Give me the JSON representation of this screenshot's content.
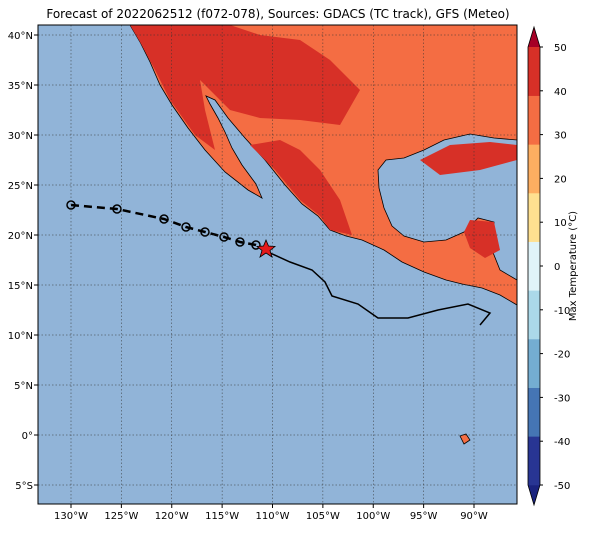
{
  "map": {
    "title": "Forecast of 2022062512 (f072-078), Sources: GDACS (TC track), GFS (Meteo)",
    "lon_ticks": [
      {
        "value": -130,
        "label": "130°W"
      },
      {
        "value": -125,
        "label": "125°W"
      },
      {
        "value": -120,
        "label": "120°W"
      },
      {
        "value": -115,
        "label": "115°W"
      },
      {
        "value": -110,
        "label": "110°W"
      },
      {
        "value": -105,
        "label": "105°W"
      },
      {
        "value": -100,
        "label": "100°W"
      },
      {
        "value": -95,
        "label": "95°W"
      },
      {
        "value": -90,
        "label": "90°W"
      }
    ],
    "lat_ticks": [
      {
        "value": 40,
        "label": "40°N"
      },
      {
        "value": 35,
        "label": "35°N"
      },
      {
        "value": 30,
        "label": "30°N"
      },
      {
        "value": 25,
        "label": "25°N"
      },
      {
        "value": 20,
        "label": "20°N"
      },
      {
        "value": 15,
        "label": "15°N"
      },
      {
        "value": 10,
        "label": "10°N"
      },
      {
        "value": 5,
        "label": "5°N"
      },
      {
        "value": 0,
        "label": "0°"
      },
      {
        "value": -5,
        "label": "5°S"
      }
    ],
    "colorbar": {
      "label": "Max Temperature (°C)",
      "lim": [
        -50,
        50
      ],
      "ticks": [
        50,
        40,
        30,
        20,
        10,
        0,
        -10,
        -20,
        -30,
        -40,
        -50
      ],
      "colors": [
        "#1a237e",
        "#283593",
        "#4575b4",
        "#74add1",
        "#abd9e9",
        "#e0f3f8",
        "#fee090",
        "#fdae61",
        "#f46d43",
        "#d73027",
        "#a50026"
      ]
    }
  }
}
